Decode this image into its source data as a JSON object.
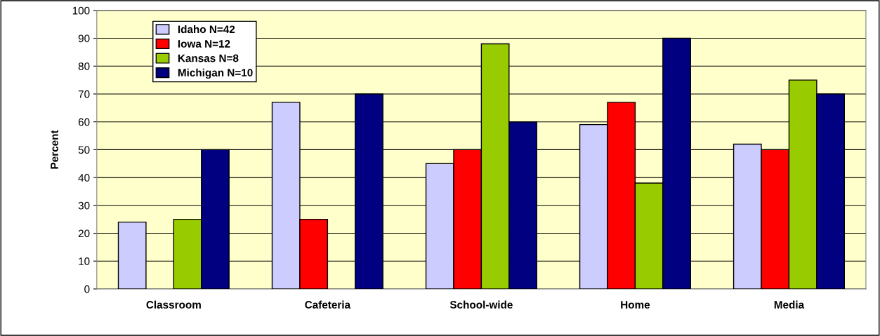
{
  "chart_data": {
    "type": "bar",
    "ylabel": "Percent",
    "categories": [
      "Classroom",
      "Cafeteria",
      "School-wide",
      "Home",
      "Media"
    ],
    "series": [
      {
        "name": "Idaho N=42",
        "color": "#ccccff",
        "values": [
          24,
          67,
          45,
          59,
          52
        ]
      },
      {
        "name": "Iowa N=12",
        "color": "#ff0000",
        "values": [
          null,
          25,
          50,
          67,
          50
        ]
      },
      {
        "name": "Kansas N=8",
        "color": "#99cc00",
        "values": [
          25,
          null,
          88,
          38,
          75
        ]
      },
      {
        "name": "Michigan N=10",
        "color": "#000080",
        "values": [
          50,
          70,
          60,
          90,
          70
        ]
      }
    ],
    "ylim": [
      0,
      100
    ],
    "yticks": [
      0,
      10,
      20,
      30,
      40,
      50,
      60,
      70,
      80,
      90,
      100
    ],
    "grid": "y",
    "legend": "top left"
  }
}
